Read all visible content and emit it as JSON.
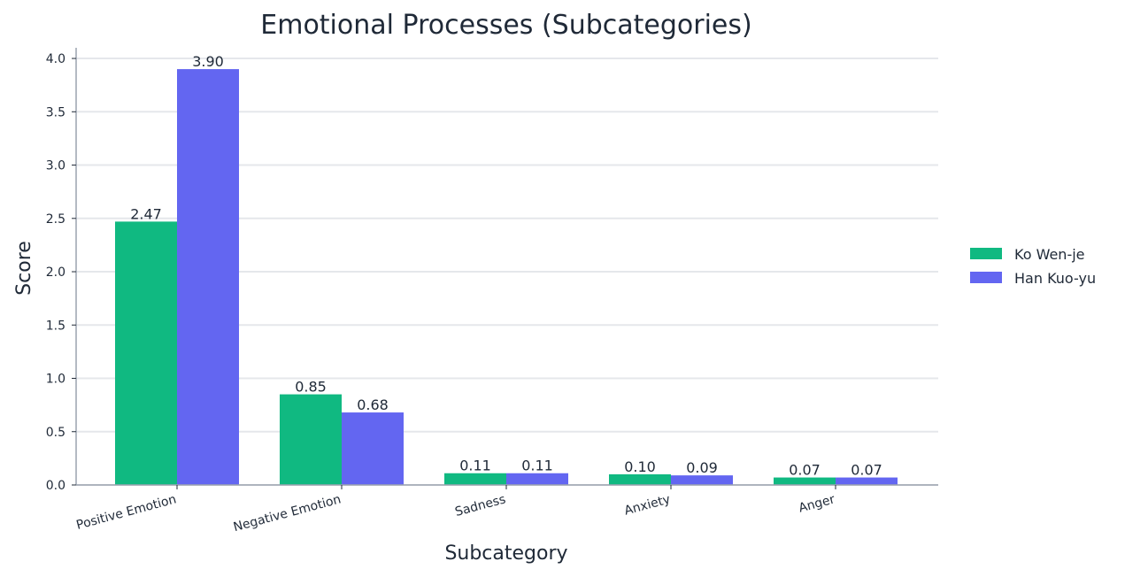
{
  "chart_data": {
    "type": "bar",
    "title": "Emotional Processes (Subcategories)",
    "xlabel": "Subcategory",
    "ylabel": "Score",
    "categories": [
      "Positive Emotion",
      "Negative Emotion",
      "Sadness",
      "Anxiety",
      "Anger"
    ],
    "series": [
      {
        "name": "Ko Wen-je",
        "color": "#10b981",
        "values": [
          2.47,
          0.85,
          0.11,
          0.1,
          0.07
        ],
        "labels": [
          "2.47",
          "0.85",
          "0.11",
          "0.10",
          "0.07"
        ]
      },
      {
        "name": "Han Kuo-yu",
        "color": "#6366f1",
        "values": [
          3.9,
          0.68,
          0.11,
          0.09,
          0.07
        ],
        "labels": [
          "3.90",
          "0.68",
          "0.11",
          "0.09",
          "0.07"
        ]
      }
    ],
    "ylim": [
      0,
      4.1
    ],
    "yticks": [
      0.0,
      0.5,
      1.0,
      1.5,
      2.0,
      2.5,
      3.0,
      3.5,
      4.0
    ],
    "ytick_labels": [
      "0.0",
      "0.5",
      "1.0",
      "1.5",
      "2.0",
      "2.5",
      "3.0",
      "3.5",
      "4.0"
    ],
    "grid": true,
    "legend_position": "right"
  }
}
